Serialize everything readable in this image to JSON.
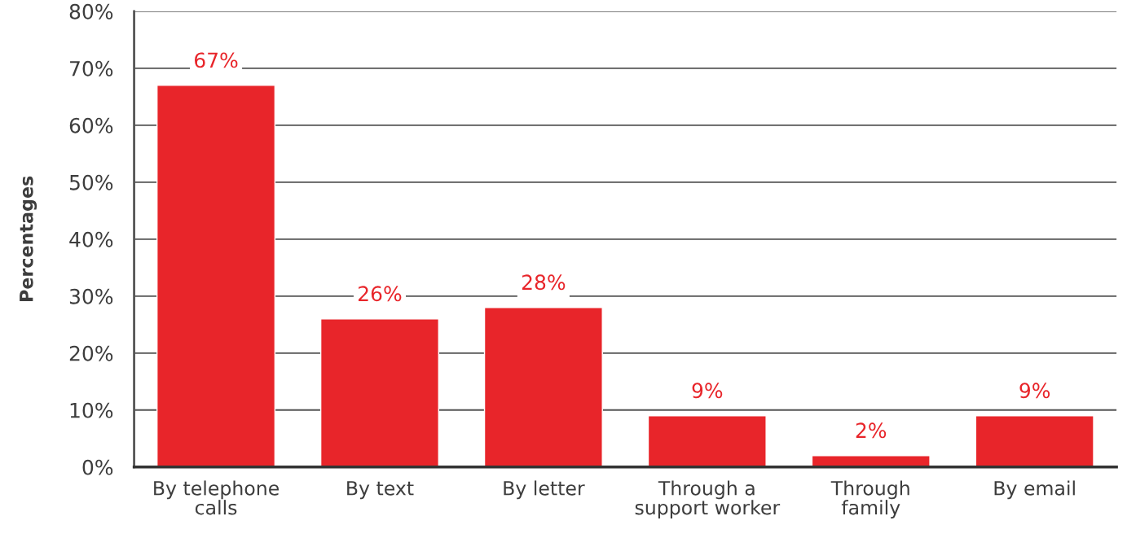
{
  "chart_data": {
    "type": "bar",
    "ylabel": "Percentages",
    "categories": [
      "By telephone\ncalls",
      "By text",
      "By letter",
      "Through a\nsupport worker",
      "Through\nfamily",
      "By email"
    ],
    "values": [
      67,
      26,
      28,
      9,
      2,
      9
    ],
    "color": "#e8252a",
    "value_labels": [
      "67%",
      "26%",
      "28%",
      "9%",
      "2%",
      "9%"
    ],
    "ylim": [
      0,
      80
    ],
    "yticks": [
      {
        "value": 0,
        "label": "0%"
      },
      {
        "value": 10,
        "label": "10%"
      },
      {
        "value": 20,
        "label": "20%"
      },
      {
        "value": 30,
        "label": "30%"
      },
      {
        "value": 40,
        "label": "40%"
      },
      {
        "value": 50,
        "label": "50%"
      },
      {
        "value": 60,
        "label": "60%"
      },
      {
        "value": 70,
        "label": "70%"
      },
      {
        "value": 80,
        "label": "80%"
      }
    ],
    "grid": "y"
  }
}
